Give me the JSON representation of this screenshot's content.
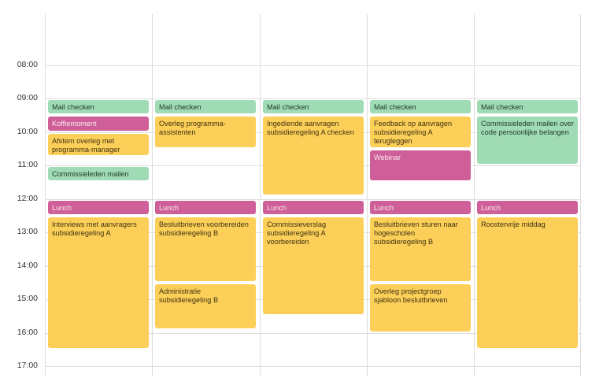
{
  "time_labels": [
    "08:00",
    "09:00",
    "10:00",
    "11:00",
    "12:00",
    "13:00",
    "14:00",
    "15:00",
    "16:00",
    "17:00"
  ],
  "colors": {
    "green": "#9fdbb4",
    "yellow": "#fccf59",
    "pink": "#cf5f98"
  },
  "days": [
    {
      "events": [
        {
          "title": "Mail checken",
          "color": "green",
          "start": "09:00",
          "end": "09:30"
        },
        {
          "title": "Koffiemoment",
          "color": "pink",
          "start": "09:30",
          "end": "10:00"
        },
        {
          "title": "Afstem overleg met programma-manager",
          "color": "yellow",
          "start": "10:00",
          "end": "10:45"
        },
        {
          "title": "Commissieleden mailen",
          "color": "green",
          "start": "11:00",
          "end": "11:30"
        },
        {
          "title": "Lunch",
          "color": "pink",
          "start": "12:00",
          "end": "12:30"
        },
        {
          "title": "Interviews met aanvragers subsidieregeling A",
          "color": "yellow",
          "start": "12:30",
          "end": "16:30"
        }
      ]
    },
    {
      "events": [
        {
          "title": "Mail checken",
          "color": "green",
          "start": "09:00",
          "end": "09:30"
        },
        {
          "title": "Overleg programma-assistenten",
          "color": "yellow",
          "start": "09:30",
          "end": "10:30"
        },
        {
          "title": "Lunch",
          "color": "pink",
          "start": "12:00",
          "end": "12:30"
        },
        {
          "title": "Besluitbrieven voorbereiden subsidieregeling B",
          "color": "yellow",
          "start": "12:30",
          "end": "14:30"
        },
        {
          "title": "Administratie subsidieregeling B",
          "color": "yellow",
          "start": "14:30",
          "end": "15:55"
        }
      ]
    },
    {
      "events": [
        {
          "title": "Mail checken",
          "color": "green",
          "start": "09:00",
          "end": "09:30"
        },
        {
          "title": "Ingediende aanvragen subsidieregeling A checken",
          "color": "yellow",
          "start": "09:30",
          "end": "11:55"
        },
        {
          "title": "Lunch",
          "color": "pink",
          "start": "12:00",
          "end": "12:30"
        },
        {
          "title": "Commissieverslag subsidieregeling A voorbereiden",
          "color": "yellow",
          "start": "12:30",
          "end": "15:30"
        }
      ]
    },
    {
      "events": [
        {
          "title": "Mail checken",
          "color": "green",
          "start": "09:00",
          "end": "09:30"
        },
        {
          "title": "Feedback op aanvragen subsidieregeling A terugleggen",
          "color": "yellow",
          "start": "09:30",
          "end": "10:30"
        },
        {
          "title": "Webinar",
          "color": "pink",
          "start": "10:30",
          "end": "11:30"
        },
        {
          "title": "Lunch",
          "color": "pink",
          "start": "12:00",
          "end": "12:30"
        },
        {
          "title": "Besluitbrieven sturen naar hogescholen subsidieregeling B",
          "color": "yellow",
          "start": "12:30",
          "end": "14:30"
        },
        {
          "title": "Overleg projectgroep sjabloon besluitbrieven",
          "color": "yellow",
          "start": "14:30",
          "end": "16:00"
        }
      ]
    },
    {
      "events": [
        {
          "title": "Mail checken",
          "color": "green",
          "start": "09:00",
          "end": "09:30"
        },
        {
          "title": "Commissieleden mailen over code persoonlijke belangen",
          "color": "green",
          "start": "09:30",
          "end": "11:00"
        },
        {
          "title": "Lunch",
          "color": "pink",
          "start": "12:00",
          "end": "12:30"
        },
        {
          "title": "Roostervrije middag",
          "color": "yellow",
          "start": "12:30",
          "end": "16:30"
        }
      ]
    }
  ]
}
